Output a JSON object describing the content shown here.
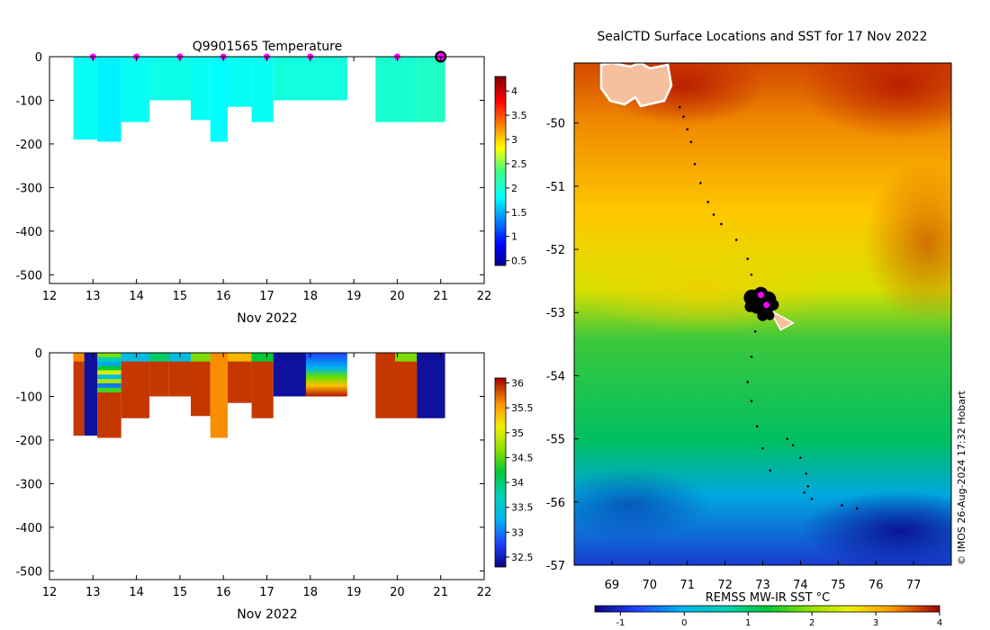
{
  "colors": {
    "temperature_fill": "#00D0C4",
    "temperature_fill_2": "#00CCA8",
    "station_marker": "#FF00FF",
    "salinity_low": "#000080",
    "salinity_high": "#A80000",
    "salinity_mid": "#00C0C0",
    "track": "#000000",
    "land": "#F5C09E"
  },
  "chart_data": [
    {
      "id": "temperature_profile",
      "type": "heatmap",
      "title": "Q9901565  Temperature",
      "xlabel": "Nov 2022",
      "ylabel": "",
      "x_ticks": [
        "12",
        "13",
        "14",
        "15",
        "16",
        "17",
        "18",
        "19",
        "20",
        "21",
        "22"
      ],
      "y_ticks": [
        "0",
        "-100",
        "-200",
        "-300",
        "-400",
        "-500"
      ],
      "xlim": [
        12,
        22
      ],
      "ylim": [
        -520,
        0
      ],
      "colorbar": {
        "ticks": [
          "0.5",
          "1",
          "1.5",
          "2",
          "2.5",
          "3",
          "3.5",
          "4"
        ],
        "range": [
          0.4,
          4.3
        ]
      },
      "casts": [
        {
          "x0": 12.55,
          "x1": 13.1,
          "depth": 190,
          "value": 1.85
        },
        {
          "x0": 13.1,
          "x1": 13.65,
          "depth": 195,
          "value": 1.75
        },
        {
          "x0": 13.65,
          "x1": 14.3,
          "depth": 150,
          "value": 1.85
        },
        {
          "x0": 14.3,
          "x1": 15.25,
          "depth": 100,
          "value": 1.9
        },
        {
          "x0": 15.25,
          "x1": 15.7,
          "depth": 145,
          "value": 1.85
        },
        {
          "x0": 15.7,
          "x1": 16.1,
          "depth": 195,
          "value": 1.8
        },
        {
          "x0": 16.1,
          "x1": 16.65,
          "depth": 115,
          "value": 1.85
        },
        {
          "x0": 16.65,
          "x1": 17.15,
          "depth": 150,
          "value": 1.85
        },
        {
          "x0": 17.15,
          "x1": 18.85,
          "depth": 100,
          "value": 1.95
        },
        {
          "x0": 19.5,
          "x1": 20.45,
          "depth": 150,
          "value": 2.0
        },
        {
          "x0": 20.45,
          "x1": 21.1,
          "depth": 150,
          "value": 2.05
        }
      ],
      "station_markers": [
        13,
        14,
        15,
        16,
        17,
        18,
        20
      ],
      "current_station": 21
    },
    {
      "id": "salinity_profile",
      "type": "heatmap",
      "title": "",
      "xlabel": "Nov 2022",
      "ylabel": "",
      "x_ticks": [
        "12",
        "13",
        "14",
        "15",
        "16",
        "17",
        "18",
        "19",
        "20",
        "21",
        "22"
      ],
      "y_ticks": [
        "0",
        "-100",
        "-200",
        "-300",
        "-400",
        "-500"
      ],
      "xlim": [
        12,
        22
      ],
      "ylim": [
        -520,
        0
      ],
      "colorbar": {
        "ticks": [
          "32.5",
          "33",
          "33.5",
          "34",
          "34.5",
          "35",
          "35.5",
          "36"
        ],
        "range": [
          32.3,
          36.1
        ]
      },
      "casts": [
        {
          "x0": 12.55,
          "x1": 12.8,
          "depth": 190,
          "value": 35.9,
          "top": 35.6
        },
        {
          "x0": 12.8,
          "x1": 13.1,
          "depth": 190,
          "value": 32.4
        },
        {
          "x0": 13.1,
          "x1": 13.65,
          "depth": 195,
          "value": 35.9,
          "top": 34.2,
          "banded": true
        },
        {
          "x0": 13.65,
          "x1": 14.3,
          "depth": 150,
          "value": 35.9,
          "top": 33.4
        },
        {
          "x0": 14.3,
          "x1": 14.75,
          "depth": 100,
          "value": 35.9,
          "top": 34.0
        },
        {
          "x0": 14.75,
          "x1": 15.25,
          "depth": 100,
          "value": 35.9,
          "top": 33.4
        },
        {
          "x0": 15.25,
          "x1": 15.7,
          "depth": 145,
          "value": 35.9,
          "top": 34.6
        },
        {
          "x0": 15.7,
          "x1": 16.1,
          "depth": 195,
          "value": 35.6
        },
        {
          "x0": 16.1,
          "x1": 16.65,
          "depth": 115,
          "value": 35.9,
          "top": 35.4
        },
        {
          "x0": 16.65,
          "x1": 17.15,
          "depth": 150,
          "value": 35.9,
          "top": 34.2
        },
        {
          "x0": 17.15,
          "x1": 17.9,
          "depth": 100,
          "value": 32.4
        },
        {
          "x0": 17.9,
          "x1": 18.85,
          "depth": 100,
          "value": 35.3,
          "top": 33.0,
          "gradient": true
        },
        {
          "x0": 19.5,
          "x1": 19.95,
          "depth": 150,
          "value": 35.9
        },
        {
          "x0": 19.95,
          "x1": 20.45,
          "depth": 150,
          "value": 35.9,
          "top": 34.6
        },
        {
          "x0": 20.45,
          "x1": 21.1,
          "depth": 150,
          "value": 32.4
        }
      ]
    },
    {
      "id": "sst_map",
      "type": "heatmap",
      "title": "SealCTD Surface Locations and SST for 17 Nov 2022",
      "xlabel": "REMSS MW-IR SST °C",
      "x_ticks": [
        "69",
        "70",
        "71",
        "72",
        "73",
        "74",
        "75",
        "76",
        "77"
      ],
      "y_ticks": [
        "-50",
        "-51",
        "-52",
        "-53",
        "-54",
        "-55",
        "-56",
        "-57"
      ],
      "xlim": [
        68.0,
        78.0
      ],
      "ylim": [
        -57.0,
        -49.05
      ],
      "colorbar": {
        "ticks": [
          "-1",
          "0",
          "1",
          "2",
          "3",
          "4"
        ],
        "range": [
          -1.4,
          4.0
        ]
      },
      "track": [
        [
          70.8,
          -49.75
        ],
        [
          70.9,
          -49.9
        ],
        [
          71.0,
          -50.1
        ],
        [
          71.1,
          -50.3
        ],
        [
          71.2,
          -50.65
        ],
        [
          71.35,
          -50.95
        ],
        [
          71.55,
          -51.25
        ],
        [
          71.7,
          -51.45
        ],
        [
          71.9,
          -51.6
        ],
        [
          72.3,
          -51.85
        ],
        [
          72.6,
          -52.15
        ],
        [
          72.7,
          -52.4
        ],
        [
          72.85,
          -52.7
        ],
        [
          72.95,
          -52.85
        ],
        [
          72.8,
          -53.3
        ],
        [
          72.7,
          -53.7
        ],
        [
          72.6,
          -54.1
        ],
        [
          72.7,
          -54.4
        ],
        [
          72.85,
          -54.8
        ],
        [
          73.0,
          -55.15
        ],
        [
          73.2,
          -55.5
        ],
        [
          73.65,
          -55.0
        ],
        [
          73.8,
          -55.1
        ],
        [
          74.0,
          -55.3
        ],
        [
          74.15,
          -55.55
        ],
        [
          74.2,
          -55.75
        ],
        [
          74.1,
          -55.85
        ],
        [
          74.3,
          -55.95
        ],
        [
          75.1,
          -56.05
        ],
        [
          75.5,
          -56.1
        ]
      ],
      "cluster_center": [
        72.95,
        -52.85
      ],
      "recent_positions": [
        [
          72.95,
          -52.72
        ],
        [
          73.1,
          -52.88
        ]
      ],
      "credit": "© IMOS 26-Aug-2024 17:32 Hobart"
    }
  ]
}
